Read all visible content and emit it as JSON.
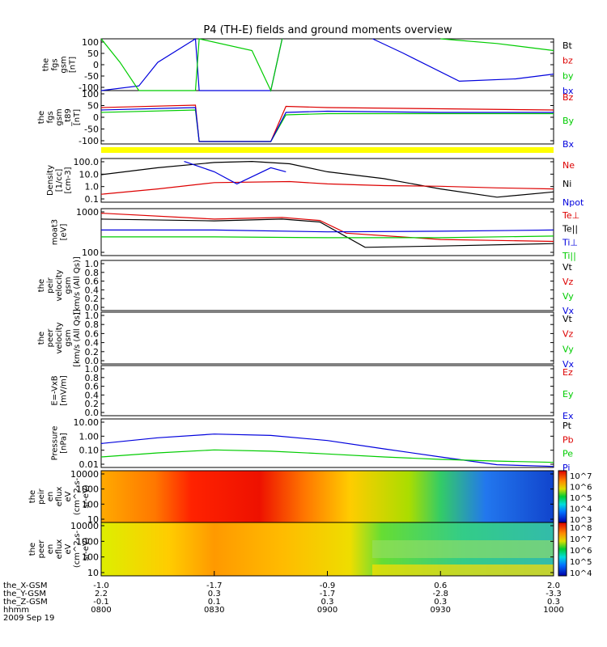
{
  "title": "P4 (TH-E) fields and ground moments overview",
  "x_axis": {
    "rows": [
      {
        "label": "the_X-GSM",
        "values": [
          "-1.0",
          "-1.7",
          "-0.9",
          "0.6",
          "2.0"
        ]
      },
      {
        "label": "the_Y-GSM",
        "values": [
          "2.2",
          "0.3",
          "-1.7",
          "-2.8",
          "-3.3"
        ]
      },
      {
        "label": "the_Z-GSM",
        "values": [
          "-0.1",
          "0.1",
          "0.3",
          "0.3",
          "0.3"
        ]
      },
      {
        "label": "hhmm",
        "values": [
          "0800",
          "0830",
          "0900",
          "0930",
          "1000"
        ]
      }
    ],
    "date": "2009 Sep 19"
  },
  "colors": {
    "black": "#000000",
    "red": "#dd0000",
    "green": "#00cc00",
    "blue": "#0000dd",
    "yellow": "#ffff00"
  },
  "panels": [
    {
      "ylabel": [
        "the",
        "fgs",
        "gsm",
        "[nT]"
      ],
      "ticks": [
        "100",
        "50",
        "0",
        "-50",
        "-100"
      ],
      "legend": [
        {
          "text": "Bt",
          "color": "black"
        },
        {
          "text": "bz",
          "color": "red"
        },
        {
          "text": "by",
          "color": "green"
        },
        {
          "text": "bx",
          "color": "blue"
        }
      ]
    },
    {
      "ylabel": [
        "the",
        "fgs",
        "gsm",
        "_t89",
        "[nT]"
      ],
      "ticks": [
        "100",
        "50",
        "0",
        "-50",
        "-100"
      ],
      "legend": [
        {
          "text": "Bz",
          "color": "red"
        },
        {
          "text": "By",
          "color": "green"
        },
        {
          "text": "Bx",
          "color": "blue"
        }
      ]
    },
    {
      "ylabel": [
        "Density",
        "[1/cc]",
        "[cm-3]"
      ],
      "ticks": [
        "100.0",
        "10.0",
        "1.0",
        "0.1"
      ],
      "legend": [
        {
          "text": "Ne",
          "color": "red"
        },
        {
          "text": "Ni",
          "color": "black"
        },
        {
          "text": "Npot",
          "color": "blue"
        }
      ]
    },
    {
      "ylabel": [
        "moat3",
        "[eV]"
      ],
      "ticks": [
        "1000",
        "100"
      ],
      "legend": [
        {
          "text": "Te⊥",
          "color": "red"
        },
        {
          "text": "Te||",
          "color": "black"
        },
        {
          "text": "Ti⊥",
          "color": "blue"
        },
        {
          "text": "Ti||",
          "color": "green"
        }
      ]
    },
    {
      "ylabel": [
        "the",
        "peir",
        "velocity",
        "gsm",
        "[km/s (All Qs)]"
      ],
      "ticks": [
        "1.0",
        "0.8",
        "0.6",
        "0.4",
        "0.2",
        "0.0"
      ],
      "legend": [
        {
          "text": "Vt",
          "color": "black"
        },
        {
          "text": "Vz",
          "color": "red"
        },
        {
          "text": "Vy",
          "color": "green"
        },
        {
          "text": "Vx",
          "color": "blue"
        }
      ]
    },
    {
      "ylabel": [
        "the",
        "peer",
        "velocity",
        "gsm",
        "[km/s (All Qs)]"
      ],
      "ticks": [
        "1.0",
        "0.8",
        "0.6",
        "0.4",
        "0.2",
        "0.0"
      ],
      "legend": [
        {
          "text": "Vt",
          "color": "black"
        },
        {
          "text": "Vz",
          "color": "red"
        },
        {
          "text": "Vy",
          "color": "green"
        },
        {
          "text": "Vx",
          "color": "blue"
        }
      ]
    },
    {
      "ylabel": [
        "E=-VxB",
        "[mV/m]"
      ],
      "ticks": [
        "1.0",
        "0.8",
        "0.6",
        "0.4",
        "0.2",
        "0.0"
      ],
      "legend": [
        {
          "text": "Ez",
          "color": "red"
        },
        {
          "text": "Ey",
          "color": "green"
        },
        {
          "text": "Ex",
          "color": "blue"
        }
      ]
    },
    {
      "ylabel": [
        "Pressure",
        "[nPa]"
      ],
      "ticks": [
        "10.00",
        "1.00",
        "0.10",
        "0.01"
      ],
      "legend": [
        {
          "text": "Pt",
          "color": "black"
        },
        {
          "text": "Pb",
          "color": "red"
        },
        {
          "text": "Pe",
          "color": "green"
        },
        {
          "text": "Pi",
          "color": "blue"
        }
      ]
    },
    {
      "ylabel": [
        "the",
        "peir",
        "en",
        "eflux",
        "eV",
        "(cm^2-s-",
        "sr-eV)"
      ],
      "ticks": [
        "10000",
        "1000",
        "100",
        "10"
      ],
      "colorbar": [
        "10^7",
        "10^6",
        "10^5",
        "10^4",
        "10^3"
      ]
    },
    {
      "ylabel": [
        "the",
        "peer",
        "en",
        "eflux",
        "eV",
        "(cm^2-s-",
        "sr-eV)"
      ],
      "ticks": [
        "10000",
        "1000",
        "100",
        "10"
      ],
      "colorbar": [
        "10^8",
        "10^7",
        "10^6",
        "10^5",
        "10^4"
      ]
    }
  ],
  "chart_data": {
    "type": "line",
    "title": "P4 (TH-E) fields and ground moments overview",
    "time_range": [
      "0800",
      "1000"
    ],
    "panels": [
      {
        "name": "the fgs gsm [nT]",
        "ylim": [
          -120,
          100
        ],
        "series": [
          {
            "name": "bx",
            "x": [
              "0800",
              "0810",
              "0815",
              "0825",
              "0826",
              "0845",
              "0848",
              "0900",
              "0912",
              "0920",
              "0935",
              "0950",
              "1000"
            ],
            "y": [
              -120,
              -100,
              0,
              100,
              -120,
              -120,
              100,
              null,
              100,
              40,
              -80,
              -70,
              -50
            ]
          },
          {
            "name": "by",
            "x": [
              "0800",
              "0805",
              "0810",
              "0825",
              "0826",
              "0840",
              "0845",
              "0848",
              "0900",
              "0930",
              "0945",
              "1000"
            ],
            "y": [
              100,
              0,
              -120,
              -120,
              100,
              50,
              -120,
              100,
              null,
              100,
              80,
              50
            ]
          }
        ]
      },
      {
        "name": "the fgs gsm_t89 [nT]",
        "ylim": [
          -120,
          100
        ],
        "series": [
          {
            "name": "Bz",
            "x": [
              "0800",
              "0825",
              "0826",
              "0845",
              "0849",
              "0900",
              "0930",
              "1000"
            ],
            "y": [
              30,
              40,
              -110,
              -110,
              35,
              30,
              25,
              20
            ]
          },
          {
            "name": "By",
            "x": [
              "0800",
              "0825",
              "0826",
              "0845",
              "0849",
              "0900",
              "0930",
              "1000"
            ],
            "y": [
              10,
              20,
              -110,
              -110,
              0,
              5,
              5,
              5
            ]
          },
          {
            "name": "Bx",
            "x": [
              "0800",
              "0825",
              "0826",
              "0845",
              "0849",
              "0900",
              "0930",
              "1000"
            ],
            "y": [
              20,
              30,
              -110,
              -110,
              10,
              15,
              10,
              10
            ]
          }
        ]
      },
      {
        "name": "Density [cm-3]",
        "ylim": [
          0.05,
          100
        ],
        "log": true,
        "series": [
          {
            "name": "Ni",
            "x": [
              "0800",
              "0815",
              "0830",
              "0840",
              "0850",
              "0900",
              "0915",
              "0930",
              "0945",
              "1000"
            ],
            "y": [
              6,
              20,
              50,
              60,
              40,
              10,
              3,
              0.5,
              0.12,
              0.3
            ]
          },
          {
            "name": "Ne",
            "x": [
              "0800",
              "0815",
              "0830",
              "0850",
              "0900",
              "0915",
              "0930",
              "0945",
              "1000"
            ],
            "y": [
              0.2,
              0.5,
              1.5,
              1.8,
              1.2,
              0.9,
              0.8,
              0.6,
              0.5
            ]
          },
          {
            "name": "Npot",
            "x": [
              "0822",
              "0830",
              "0836",
              "0845",
              "0849"
            ],
            "y": [
              60,
              10,
              1.2,
              20,
              10
            ]
          }
        ]
      },
      {
        "name": "moat3 [eV]",
        "ylim": [
          100,
          1000
        ],
        "log": true,
        "series": [
          {
            "name": "Te⊥",
            "x": [
              "0800",
              "0830",
              "0848",
              "0858",
              "0905",
              "0930",
              "1000"
            ],
            "y": [
              800,
              600,
              650,
              560,
              300,
              220,
              200
            ]
          },
          {
            "name": "Te||",
            "x": [
              "0800",
              "0830",
              "0848",
              "0858",
              "0910",
              "0930",
              "1000"
            ],
            "y": [
              600,
              550,
              600,
              520,
              150,
              160,
              180
            ]
          },
          {
            "name": "Ti⊥",
            "x": [
              "0800",
              "0830",
              "0900",
              "0930",
              "1000"
            ],
            "y": [
              350,
              350,
              320,
              330,
              350
            ]
          },
          {
            "name": "Ti||",
            "x": [
              "0800",
              "0830",
              "0900",
              "0930",
              "1000"
            ],
            "y": [
              250,
              250,
              240,
              240,
              260
            ]
          }
        ]
      },
      {
        "name": "Pressure [nPa]",
        "ylim": [
          0.005,
          20
        ],
        "log": true,
        "series": [
          {
            "name": "Pi",
            "x": [
              "0800",
              "0815",
              "0830",
              "0845",
              "0900",
              "0915",
              "0930",
              "0945",
              "1000"
            ],
            "y": [
              0.3,
              0.8,
              1.5,
              1.2,
              0.5,
              0.12,
              0.03,
              0.008,
              0.006
            ]
          },
          {
            "name": "Pe",
            "x": [
              "0800",
              "0815",
              "0830",
              "0845",
              "0900",
              "0915",
              "0930",
              "0945",
              "1000"
            ],
            "y": [
              0.03,
              0.06,
              0.1,
              0.08,
              0.05,
              0.03,
              0.02,
              0.015,
              0.012
            ]
          }
        ]
      }
    ]
  }
}
